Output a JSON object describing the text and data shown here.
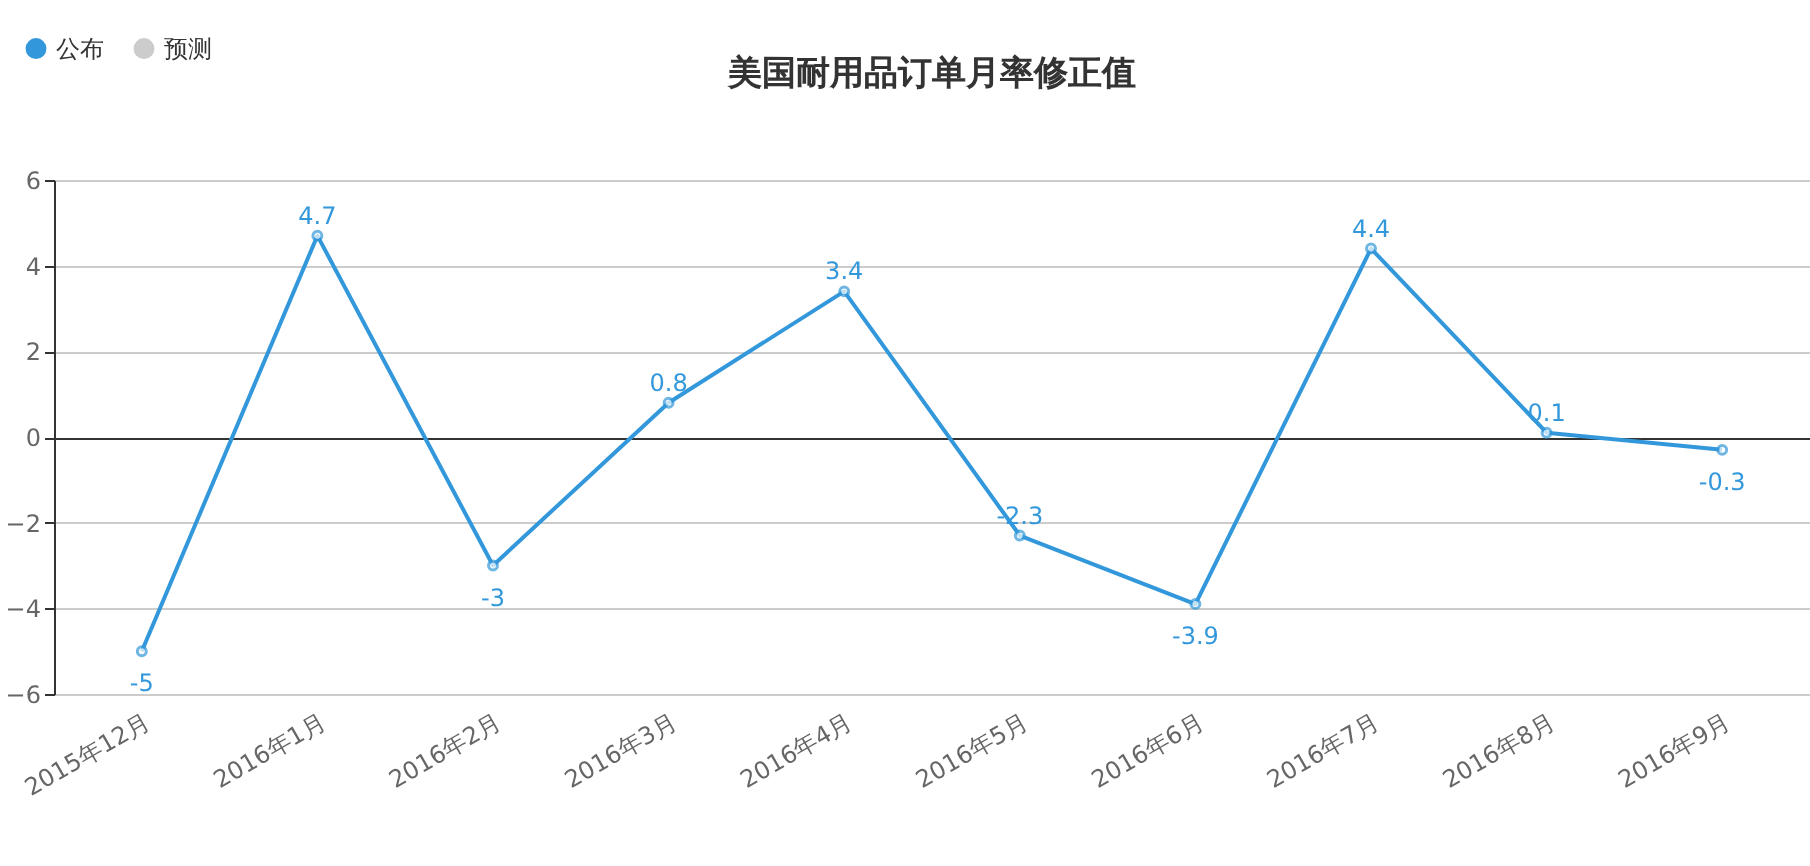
{
  "chart_data": {
    "type": "line",
    "title": "美国耐用品订单月率修正值",
    "categories": [
      "2015年12月",
      "2016年1月",
      "2016年2月",
      "2016年3月",
      "2016年4月",
      "2016年5月",
      "2016年6月",
      "2016年7月",
      "2016年8月",
      "2016年9月"
    ],
    "series": [
      {
        "name": "公布",
        "color": "#3398db",
        "values": [
          -5,
          4.7,
          -3,
          0.8,
          3.4,
          -2.3,
          -3.9,
          4.4,
          0.1,
          -0.3
        ]
      },
      {
        "name": "预测",
        "color": "#cccccc",
        "values": [
          null,
          null,
          null,
          null,
          null,
          null,
          null,
          null,
          null,
          null
        ]
      }
    ],
    "ylim": [
      -6,
      6
    ],
    "yticks": [
      -6,
      -4,
      -2,
      0,
      2,
      4,
      6
    ],
    "grid": "y",
    "legend": "top left",
    "marker": "circle",
    "line_style": "solid",
    "data_labels": true
  }
}
